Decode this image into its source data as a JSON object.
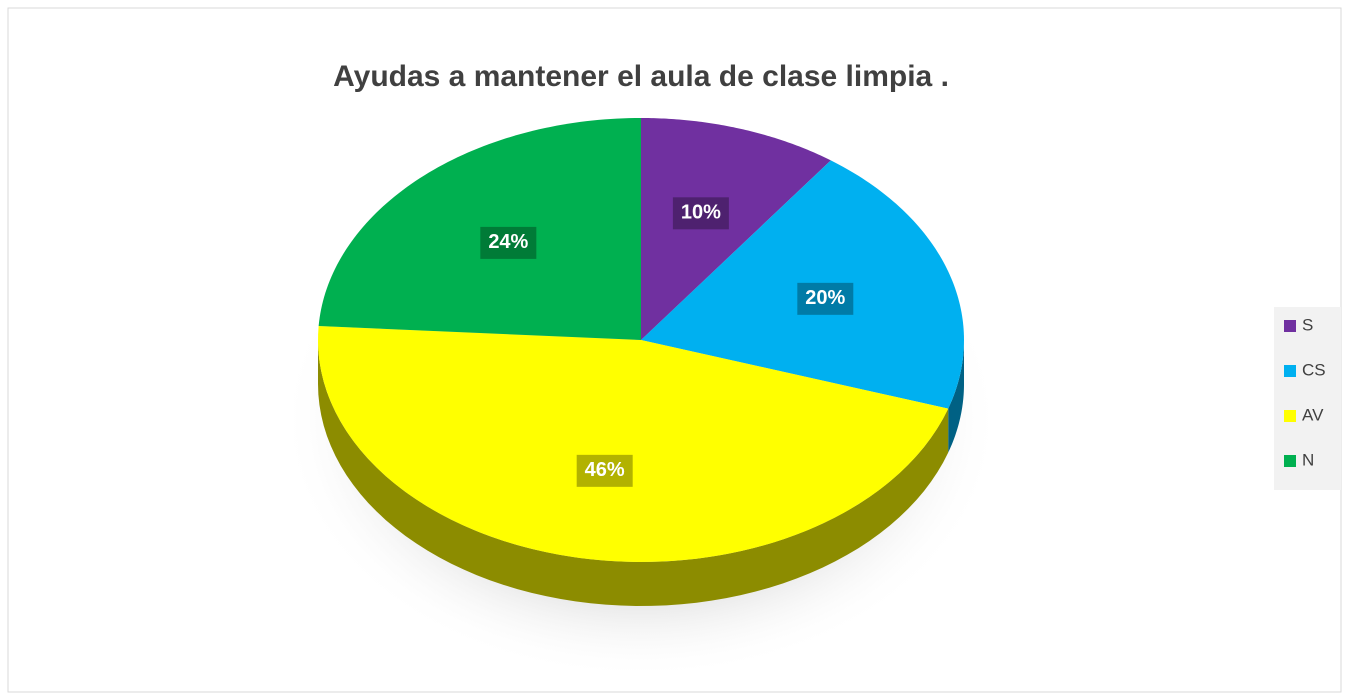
{
  "chart_data": {
    "type": "pie",
    "title": "Ayudas a mantener el aula de clase limpia .",
    "categories": [
      "S",
      "CS",
      "AV",
      "N"
    ],
    "values": [
      10,
      20,
      46,
      24
    ],
    "value_labels": [
      "10%",
      "20%",
      "46%",
      "24%"
    ],
    "colors": [
      "#7030a0",
      "#00b0f0",
      "#ffff00",
      "#00b050"
    ],
    "legend": "right"
  }
}
